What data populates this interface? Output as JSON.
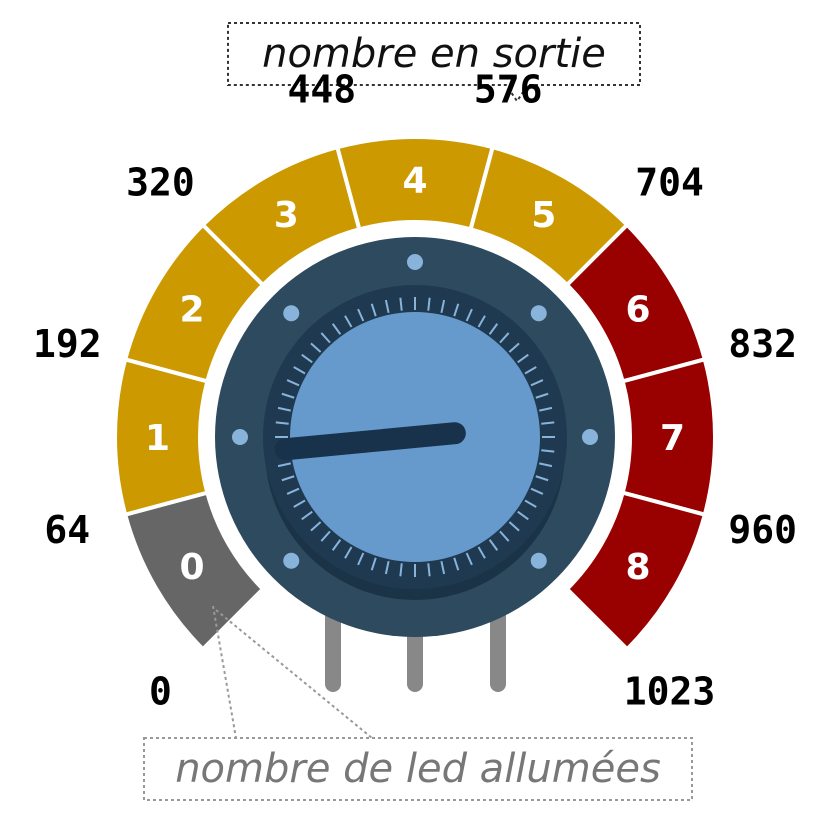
{
  "callouts": {
    "output": "nombre en sortie",
    "leds": "nombre de led allumées"
  },
  "colors": {
    "off": "#666666",
    "on": "#cc9900",
    "high": "#990000",
    "knob_outer": "#2e4a5e",
    "knob_inner": "#6699cc",
    "tick": "#88b4dc",
    "pointer": "#17324a",
    "pins": "#888888"
  },
  "segments": [
    {
      "label": "0",
      "color": "off"
    },
    {
      "label": "1",
      "color": "on"
    },
    {
      "label": "2",
      "color": "on"
    },
    {
      "label": "3",
      "color": "on"
    },
    {
      "label": "4",
      "color": "on"
    },
    {
      "label": "5",
      "color": "on"
    },
    {
      "label": "6",
      "color": "high"
    },
    {
      "label": "7",
      "color": "high"
    },
    {
      "label": "8",
      "color": "high"
    }
  ],
  "boundaries": [
    "0",
    "64",
    "192",
    "320",
    "448",
    "576",
    "704",
    "832",
    "960",
    "1023"
  ],
  "knob": {
    "pointer_value": 150
  }
}
